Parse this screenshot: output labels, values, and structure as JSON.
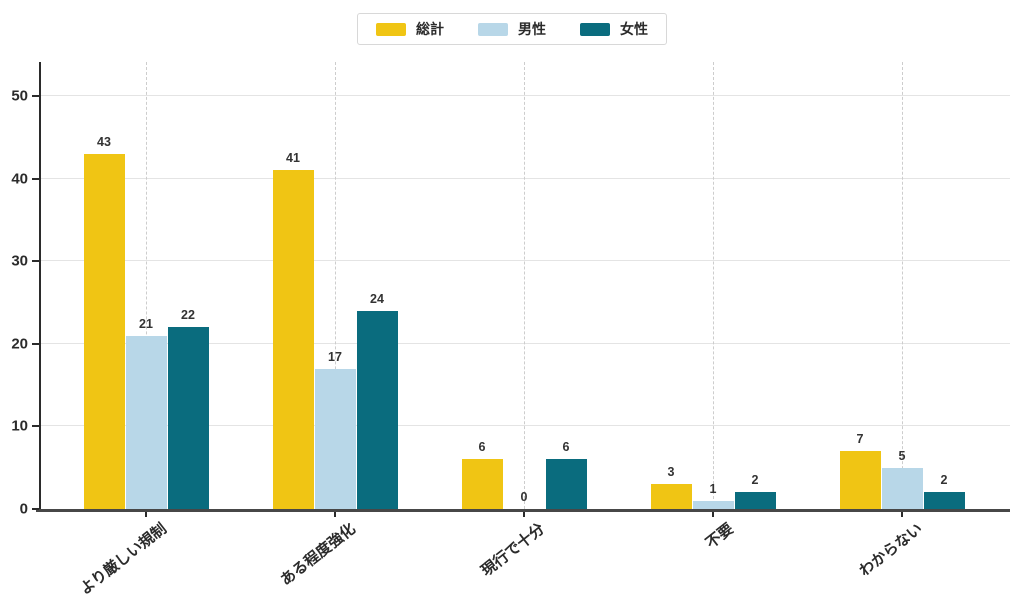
{
  "chart_data": {
    "type": "bar",
    "title": "",
    "xlabel": "",
    "ylabel": "",
    "categories": [
      "より厳しい規制",
      "ある程度強化",
      "現行で十分",
      "不要",
      "わからない"
    ],
    "series": [
      {
        "name": "総計",
        "color": "#F0C514",
        "values": [
          43,
          41,
          6,
          3,
          7
        ]
      },
      {
        "name": "男性",
        "color": "#B8D7E8",
        "values": [
          21,
          17,
          0,
          1,
          5
        ]
      },
      {
        "name": "女性",
        "color": "#0A6C7E",
        "values": [
          22,
          24,
          6,
          2,
          2
        ]
      }
    ],
    "ylim": [
      0,
      54
    ],
    "yticks": [
      0,
      10,
      20,
      30,
      40,
      50
    ],
    "grid": true,
    "gridline_color": "#e4e4e4",
    "vertical_gridline_style": "dashed",
    "legend_position": "top-center",
    "value_labels": true,
    "axis_color": "#2b2b2b",
    "baseline_color": "#474747"
  }
}
